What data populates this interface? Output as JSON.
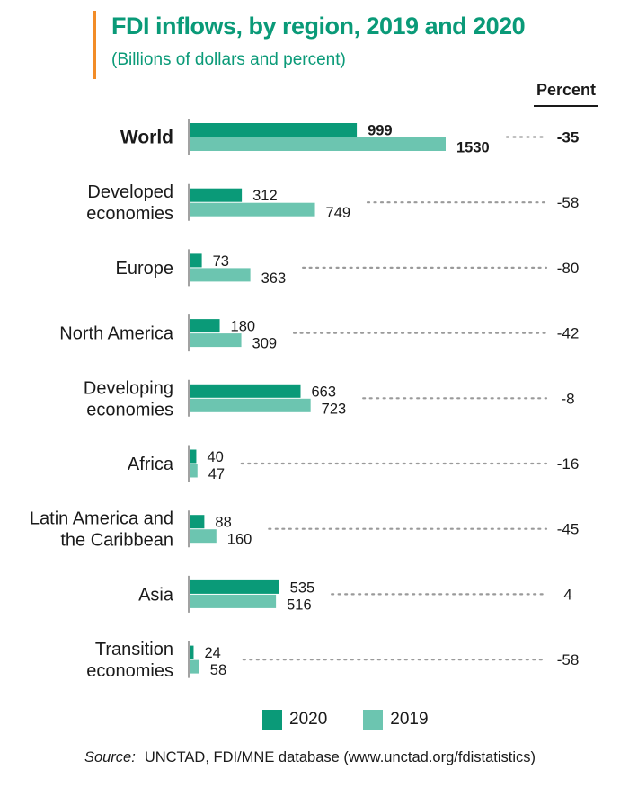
{
  "chart_data": {
    "type": "bar",
    "orientation": "horizontal",
    "title": "FDI inflows, by region, 2019 and 2020",
    "subtitle": "(Billions of dollars and percent)",
    "percent_header": "Percent",
    "categories": [
      [
        "World"
      ],
      [
        "Developed",
        "economies"
      ],
      [
        "Europe"
      ],
      [
        "North America"
      ],
      [
        "Developing",
        "economies"
      ],
      [
        "Africa"
      ],
      [
        "Latin America and",
        "the Caribbean"
      ],
      [
        "Asia"
      ],
      [
        "Transition",
        "economies"
      ]
    ],
    "series": [
      {
        "name": "2020",
        "color": "#0a9a78",
        "values": [
          999,
          312,
          73,
          180,
          663,
          40,
          88,
          535,
          24
        ]
      },
      {
        "name": "2019",
        "color": "#6cc5b0",
        "values": [
          1530,
          749,
          363,
          309,
          723,
          47,
          160,
          516,
          58
        ]
      }
    ],
    "percent_change": [
      "-35",
      "-58",
      "-80",
      "-42",
      "-8",
      "-16",
      "-45",
      "4",
      "-58"
    ],
    "bold_category_index": 0,
    "legend_position": "bottom",
    "grid": false
  },
  "source": {
    "label": "Source:",
    "text": "UNCTAD, FDI/MNE database (www.unctad.org/fdistatistics)"
  },
  "colors": {
    "title": "#0a9a78",
    "accent": "#f28c28",
    "dots": "#9a9a9a"
  }
}
